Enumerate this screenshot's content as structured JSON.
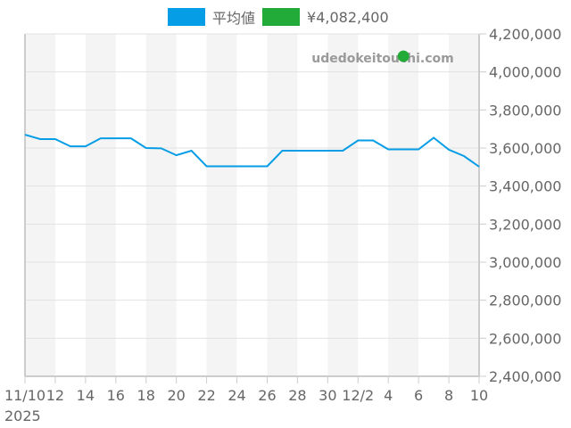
{
  "legend": {
    "items": [
      {
        "label": "平均値",
        "color": "#059de6"
      },
      {
        "label": "¥4,082,400",
        "color": "#22ab38"
      }
    ]
  },
  "watermark": "udedokeitouchi.com",
  "chart_data": {
    "type": "line",
    "title": "",
    "xlabel": "",
    "ylabel": "",
    "x_start": "2025-11-10",
    "x_end": "2025-12-10",
    "x_tick_labels": [
      "11/10\n2025",
      "12",
      "14",
      "16",
      "18",
      "20",
      "22",
      "24",
      "26",
      "28",
      "30",
      "12/2",
      "4",
      "6",
      "8",
      "10"
    ],
    "y_tick_labels": [
      "4,200,000",
      "4,000,000",
      "3,800,000",
      "3,600,000",
      "3,400,000",
      "3,200,000",
      "3,000,000",
      "2,800,000",
      "2,600,000",
      "2,400,000"
    ],
    "ylim": [
      2400000,
      4200000
    ],
    "y_axis_position": "right",
    "grid": true,
    "legend_position": "top",
    "series": [
      {
        "name": "平均値",
        "type": "line",
        "color": "#059de6",
        "x": [
          "11/10",
          "11/11",
          "11/12",
          "11/13",
          "11/14",
          "11/15",
          "11/16",
          "11/17",
          "11/18",
          "11/19",
          "11/20",
          "11/21",
          "11/22",
          "11/23",
          "11/24",
          "11/25",
          "11/26",
          "11/27",
          "11/28",
          "11/29",
          "11/30",
          "12/1",
          "12/2",
          "12/3",
          "12/4",
          "12/5",
          "12/6",
          "12/7",
          "12/8",
          "12/9",
          "12/10"
        ],
        "values": [
          3670000,
          3647000,
          3647000,
          3609000,
          3609000,
          3651000,
          3651000,
          3651000,
          3600000,
          3598000,
          3562000,
          3586000,
          3504000,
          3504000,
          3504000,
          3504000,
          3504000,
          3586000,
          3586000,
          3586000,
          3586000,
          3586000,
          3640000,
          3640000,
          3593000,
          3593000,
          3593000,
          3654000,
          3591000,
          3558000,
          3502000
        ]
      },
      {
        "name": "¥4,082,400",
        "type": "scatter",
        "color": "#22ab38",
        "x": [
          "12/5"
        ],
        "values": [
          4082400
        ]
      }
    ]
  }
}
